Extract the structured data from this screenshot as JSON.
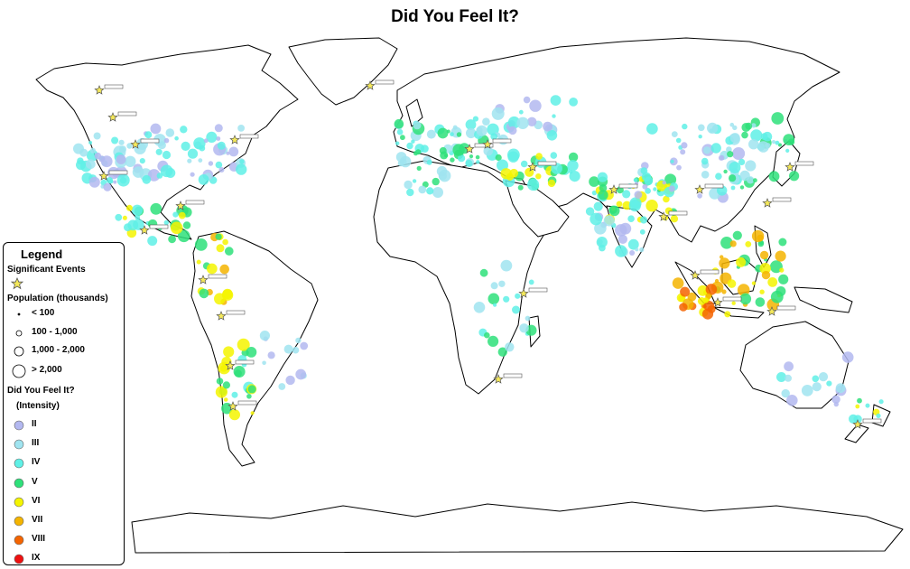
{
  "title": "Did You Feel It?",
  "legend": {
    "title": "Legend",
    "significant_label": "Significant Events",
    "population_label": "Population (thousands)",
    "population_classes": [
      "< 100",
      "100 - 1,000",
      "1,000 - 2,000",
      "> 2,000"
    ],
    "dyfi_label": "Did You Feel It?",
    "dyfi_sublabel": "(Intensity)",
    "intensity_classes": [
      {
        "label": "II",
        "color": "#b3b8f0"
      },
      {
        "label": "III",
        "color": "#a0e4f0"
      },
      {
        "label": "IV",
        "color": "#5ff0e6"
      },
      {
        "label": "V",
        "color": "#2ee07a"
      },
      {
        "label": "VI",
        "color": "#f4f400"
      },
      {
        "label": "VII",
        "color": "#f4b400"
      },
      {
        "label": "VIII",
        "color": "#f46400"
      },
      {
        "label": "IX",
        "color": "#ee1010"
      }
    ]
  },
  "colors": {
    "land_outline": "#000000",
    "background": "#ffffff",
    "star_fill": "#f4e85a",
    "star_stroke": "#555555"
  },
  "event_markers": [
    "significant-event-star",
    "event-label-box"
  ]
}
